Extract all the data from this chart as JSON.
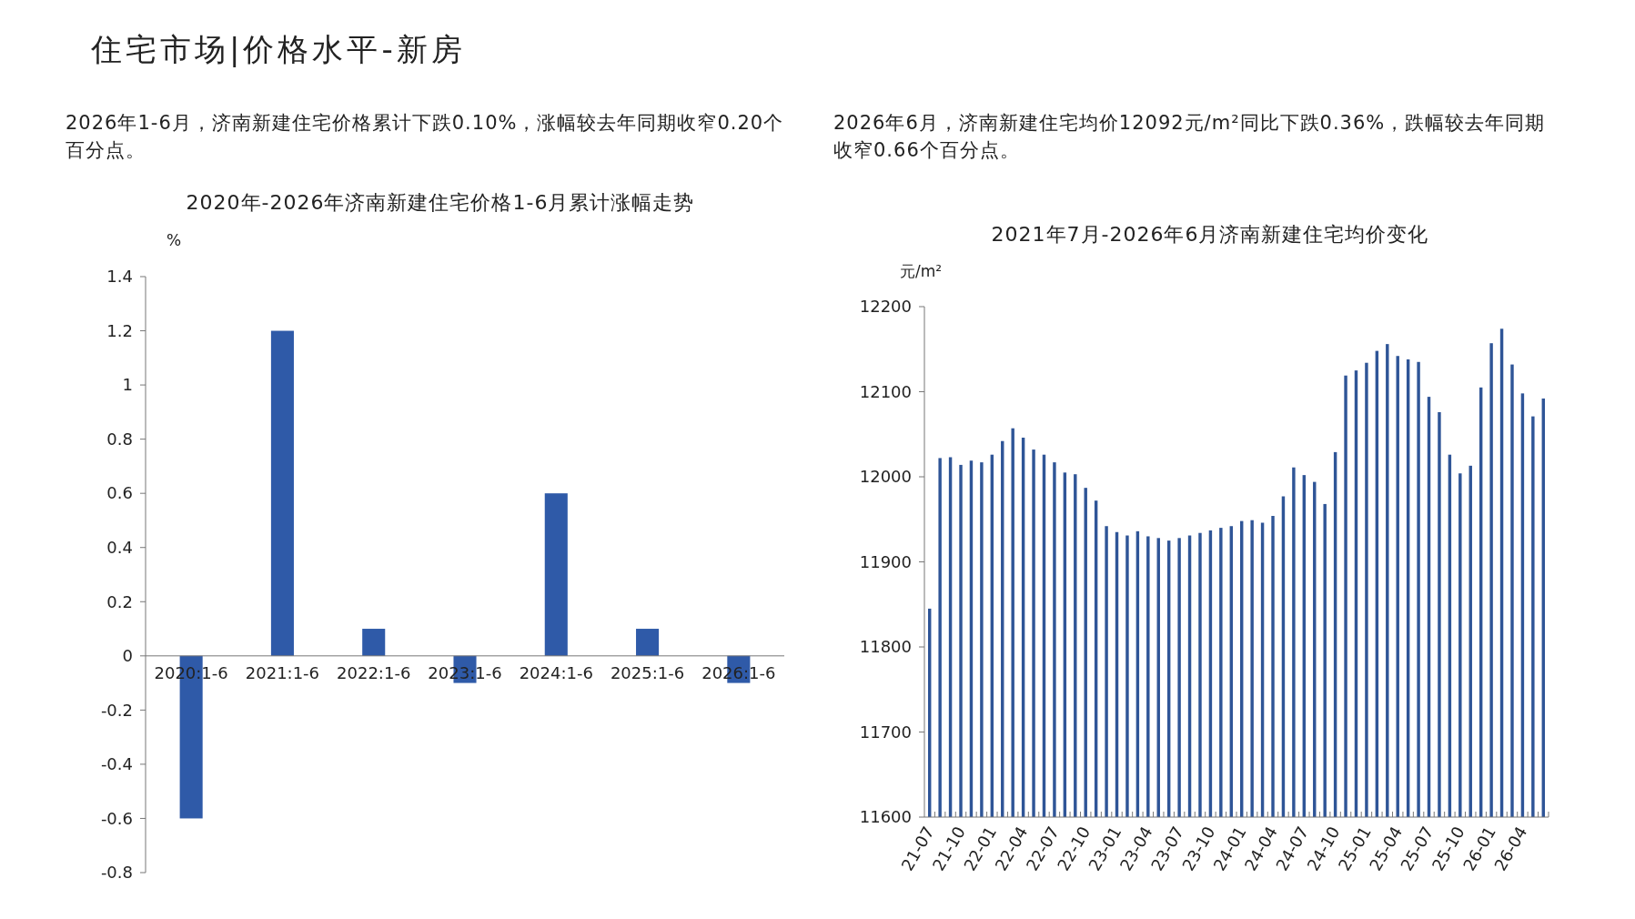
{
  "chart_data": [
    {
      "type": "bar",
      "title": "2020年-2026年济南新建住宅价格1-6月累计涨幅走势",
      "ylabel": "%",
      "annotations": [
        "住宅市场|价格水平-新房",
        "2026年1-6月，济南新建住宅价格累计下跌0.10%，涨幅较去年同期收窄0.20个百分点。"
      ],
      "categories": [
        "2020:1-6",
        "2021:1-6",
        "2022:1-6",
        "2023:1-6",
        "2024:1-6",
        "2025:1-6",
        "2026:1-6"
      ],
      "values": [
        -0.6,
        1.2,
        0.1,
        -0.1,
        0.6,
        0.1,
        -0.1
      ],
      "color": "#2f5aa8",
      "ylim": [
        -0.8,
        1.4
      ],
      "yticks": [
        -0.8,
        -0.6,
        -0.4,
        -0.2,
        0,
        0.2,
        0.4,
        0.6,
        0.8,
        1,
        1.2,
        1.4
      ]
    },
    {
      "type": "bar",
      "title": "2021年7月-2026年6月济南新建住宅均价变化",
      "ylabel": "元/m²",
      "annotations": [
        "2026年6月，济南新建住宅均价12092元/m²同比下跌0.36%，跌幅较去年同期收窄0.66个百分点。"
      ],
      "categories": [
        "21-07",
        null,
        null,
        "21-10",
        null,
        null,
        "22-01",
        null,
        null,
        "22-04",
        null,
        null,
        "22-07",
        null,
        null,
        "22-10",
        null,
        null,
        "23-01",
        null,
        null,
        "23-04",
        null,
        null,
        "23-07",
        null,
        null,
        "23-10",
        null,
        null,
        "24-01",
        null,
        null,
        "24-04",
        null,
        null,
        "24-07",
        null,
        null,
        "24-10",
        null,
        null,
        "25-01",
        null,
        null,
        "25-04",
        null,
        null,
        "25-07",
        null,
        null,
        "25-10",
        null,
        null,
        "26-01",
        null,
        null,
        "26-04",
        null,
        null
      ],
      "values": [
        11845,
        12022,
        12023,
        12014,
        12019,
        12017,
        12026,
        12042,
        12057,
        12046,
        12032,
        12026,
        12017,
        12005,
        12003,
        11987,
        11972,
        11942,
        11935,
        11931,
        11936,
        11930,
        11928,
        11925,
        11928,
        11931,
        11934,
        11937,
        11940,
        11942,
        11948,
        11949,
        11946,
        11954,
        11977,
        12011,
        12002,
        11994,
        11968,
        12029,
        12119,
        12125,
        12134,
        12148,
        12156,
        12142,
        12138,
        12135,
        12094,
        12076,
        12026,
        12004,
        12013,
        12105,
        12157,
        12174,
        12132,
        12098,
        12071,
        12092
      ],
      "color": "#2f5597",
      "ylim": [
        11600,
        12200
      ],
      "yticks": [
        11600,
        11700,
        11800,
        11900,
        12000,
        12100,
        12200
      ]
    }
  ]
}
